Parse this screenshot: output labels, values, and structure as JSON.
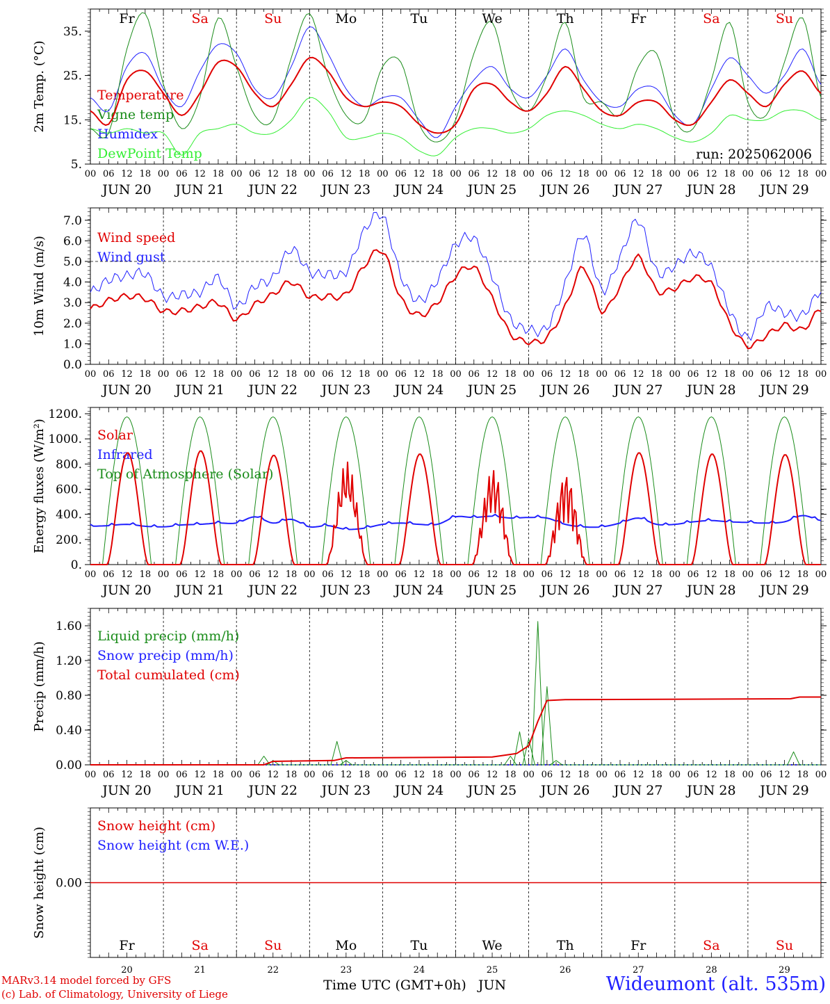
{
  "run_label": "run: 2025062006",
  "weekdays": [
    "Fr",
    "Sa",
    "Su",
    "Mo",
    "Tu",
    "We",
    "Th",
    "Fr",
    "Sa",
    "Su"
  ],
  "weekday_colors": [
    "#000000",
    "#e00000",
    "#e00000",
    "#000000",
    "#000000",
    "#000000",
    "#000000",
    "#000000",
    "#e00000",
    "#e00000"
  ],
  "dates": [
    "JUN 20",
    "JUN 21",
    "JUN 22",
    "JUN 23",
    "JUN 24",
    "JUN 25",
    "JUN 26",
    "JUN 27",
    "JUN 28",
    "JUN 29"
  ],
  "day_numbers": [
    "20",
    "21",
    "22",
    "23",
    "24",
    "25",
    "26",
    "27",
    "28",
    "29"
  ],
  "hour_ticks": [
    "00",
    "06",
    "12",
    "18"
  ],
  "footer": {
    "model": "MARv3.14 model forced by GFS",
    "credit": "(c) Lab. of Climatology, University of Liege",
    "xlabel": "Time UTC (GMT+0h)",
    "month": "JUN",
    "station": "Wideumont (alt. 535m)"
  },
  "chart_data": [
    {
      "type": "line",
      "ylabel": "2m Temp. (°C)",
      "ylim": [
        5,
        40
      ],
      "yticks": [
        "35.",
        "25.",
        "15.",
        "5."
      ],
      "ytick_values": [
        35,
        25,
        15,
        5
      ],
      "legend": [
        {
          "name": "Temperature",
          "color": "#e00000"
        },
        {
          "name": "Vigne temp",
          "color": "#1a8c1a"
        },
        {
          "name": "Humidex",
          "color": "#2020ff"
        },
        {
          "name": "DewPoint Temp",
          "color": "#33ee33"
        }
      ],
      "x_hours": [
        0,
        6,
        12,
        18,
        24,
        30,
        36,
        42,
        48,
        54,
        60,
        66,
        72,
        78,
        84,
        90,
        96,
        102,
        108,
        114,
        120,
        126,
        132,
        138,
        144,
        150,
        156,
        162,
        168,
        174,
        180,
        186,
        192,
        198,
        204,
        210,
        216,
        222,
        228,
        234,
        240
      ],
      "series": [
        {
          "name": "Temperature",
          "color": "#e00000",
          "width": 2,
          "values": [
            17,
            14,
            24,
            26,
            21,
            16,
            21,
            28,
            27,
            21,
            18,
            23,
            29,
            26,
            20,
            18,
            19,
            18,
            14,
            12,
            14,
            22,
            23,
            19,
            17,
            21,
            27,
            22,
            17,
            16,
            19,
            19,
            15,
            14,
            19,
            24,
            21,
            18,
            23,
            26,
            21
          ]
        },
        {
          "name": "Vigne temp",
          "color": "#1a8c1a",
          "width": 1,
          "values": [
            13,
            12,
            31,
            39,
            23,
            13,
            20,
            38,
            27,
            16,
            15,
            29,
            39,
            25,
            16,
            15,
            27,
            28,
            14,
            10,
            15,
            30,
            37,
            22,
            17,
            25,
            37,
            20,
            19,
            16,
            27,
            30,
            15,
            13,
            24,
            37,
            19,
            16,
            28,
            38,
            20
          ]
        },
        {
          "name": "Humidex",
          "color": "#2020ff",
          "width": 1,
          "values": [
            20,
            17,
            27,
            30,
            22,
            18,
            26,
            32,
            30,
            22,
            20,
            27,
            36,
            30,
            22,
            18,
            20,
            20,
            15,
            11,
            18,
            24,
            27,
            22,
            20,
            25,
            31,
            24,
            19,
            18,
            22,
            22,
            16,
            14,
            22,
            29,
            25,
            21,
            25,
            31,
            23
          ]
        },
        {
          "name": "DewPoint Temp",
          "color": "#33ee33",
          "width": 1,
          "values": [
            13,
            12,
            13,
            12,
            12,
            7,
            12,
            13,
            14,
            12,
            12,
            15,
            20,
            17,
            11,
            11,
            12,
            11,
            8,
            7,
            11,
            13,
            13,
            12,
            13,
            16,
            17,
            16,
            14,
            13,
            14,
            13,
            11,
            10,
            12,
            16,
            15,
            15,
            17,
            17,
            15
          ]
        }
      ]
    },
    {
      "type": "line",
      "ylabel": "10m Wind (m/s)",
      "ylim": [
        0,
        7.6
      ],
      "yticks": [
        "7.0",
        "6.0",
        "5.0",
        "4.0",
        "3.0",
        "2.0",
        "1.0",
        "0.0"
      ],
      "ytick_values": [
        7,
        6,
        5,
        4,
        3,
        2,
        1,
        0
      ],
      "dashed_reference": 5.0,
      "legend": [
        {
          "name": "Wind speed",
          "color": "#e00000"
        },
        {
          "name": "Wind gust",
          "color": "#2020ff"
        }
      ],
      "x_hours": [
        0,
        6,
        12,
        18,
        24,
        30,
        36,
        42,
        48,
        54,
        60,
        66,
        72,
        78,
        84,
        90,
        96,
        102,
        108,
        114,
        120,
        126,
        132,
        138,
        144,
        150,
        156,
        162,
        168,
        174,
        180,
        186,
        192,
        198,
        204,
        210,
        216,
        222,
        228,
        234,
        240
      ],
      "series": [
        {
          "name": "Wind speed",
          "color": "#e00000",
          "width": 2,
          "values": [
            2.7,
            3.1,
            3.3,
            3.2,
            2.6,
            2.6,
            2.8,
            3.0,
            2.2,
            2.9,
            3.4,
            4.0,
            3.3,
            3.3,
            3.4,
            4.8,
            5.5,
            3.2,
            2.4,
            3.0,
            4.3,
            4.7,
            3.2,
            1.5,
            1.1,
            1.3,
            2.8,
            4.7,
            2.6,
            3.8,
            5.2,
            3.6,
            3.7,
            4.2,
            3.9,
            2.0,
            0.9,
            1.4,
            1.9,
            1.7,
            2.7
          ]
        },
        {
          "name": "Wind gust",
          "color": "#2020ff",
          "width": 1,
          "values": [
            3.5,
            4.1,
            4.3,
            4.4,
            3.3,
            3.4,
            3.5,
            4.2,
            2.8,
            3.8,
            4.2,
            5.6,
            4.5,
            4.4,
            4.5,
            6.5,
            7.2,
            4.3,
            3.1,
            4.1,
            5.8,
            6.1,
            4.3,
            2.2,
            1.7,
            1.8,
            3.9,
            6.3,
            3.6,
            5.2,
            7.0,
            4.5,
            4.8,
            5.4,
            4.7,
            2.6,
            1.3,
            2.8,
            2.5,
            2.4,
            3.6
          ]
        }
      ]
    },
    {
      "type": "line",
      "ylabel": "Energy fluxes (W/m²)",
      "ylim": [
        0,
        1250
      ],
      "yticks": [
        "1200.",
        "1000.",
        "800.",
        "600.",
        "400.",
        "200.",
        "0."
      ],
      "ytick_values": [
        1200,
        1000,
        800,
        600,
        400,
        200,
        0
      ],
      "legend": [
        {
          "name": "Solar",
          "color": "#e00000"
        },
        {
          "name": "Infrared",
          "color": "#2020ff"
        },
        {
          "name": "Top of Atmosphere (Solar)",
          "color": "#1a8c1a"
        }
      ],
      "daily_peaks": {
        "top_of_atmosphere": 1175,
        "solar": [
          890,
          905,
          870,
          860,
          880,
          800,
          760,
          890,
          880,
          875
        ]
      },
      "infrared_values": [
        305,
        310,
        320,
        305,
        300,
        315,
        320,
        330,
        330,
        380,
        330,
        360,
        300,
        310,
        280,
        290,
        320,
        330,
        320,
        320,
        380,
        375,
        385,
        370,
        375,
        370,
        320,
        300,
        300,
        330,
        370,
        320,
        320,
        340,
        350,
        340,
        335,
        330,
        340,
        390,
        350
      ]
    },
    {
      "type": "line",
      "ylabel": "Precip (mm/h)",
      "ylim": [
        0,
        1.8
      ],
      "yticks": [
        "1.60",
        "1.20",
        "0.80",
        "0.40",
        "0.00"
      ],
      "ytick_values": [
        1.6,
        1.2,
        0.8,
        0.4,
        0
      ],
      "legend": [
        {
          "name": "Liquid precip (mm/h)",
          "color": "#1a8c1a"
        },
        {
          "name": "Snow precip (mm/h)",
          "color": "#2020ff"
        },
        {
          "name": "Total cumulated (cm)",
          "color": "#e00000"
        }
      ],
      "liquid_events": [
        {
          "hour": 57,
          "value": 0.1
        },
        {
          "hour": 60,
          "value": 0.05
        },
        {
          "hour": 81,
          "value": 0.27
        },
        {
          "hour": 84,
          "value": 0.05
        },
        {
          "hour": 138,
          "value": 0.1
        },
        {
          "hour": 141,
          "value": 0.38
        },
        {
          "hour": 144,
          "value": 0.3
        },
        {
          "hour": 147,
          "value": 1.65
        },
        {
          "hour": 150,
          "value": 0.9
        },
        {
          "hour": 153,
          "value": 0.05
        },
        {
          "hour": 231,
          "value": 0.15
        }
      ],
      "cumulated": [
        {
          "hour": 0,
          "value": 0
        },
        {
          "hour": 57,
          "value": 0
        },
        {
          "hour": 60,
          "value": 0.04
        },
        {
          "hour": 80,
          "value": 0.05
        },
        {
          "hour": 84,
          "value": 0.08
        },
        {
          "hour": 132,
          "value": 0.09
        },
        {
          "hour": 140,
          "value": 0.13
        },
        {
          "hour": 144,
          "value": 0.22
        },
        {
          "hour": 147,
          "value": 0.5
        },
        {
          "hour": 150,
          "value": 0.74
        },
        {
          "hour": 156,
          "value": 0.75
        },
        {
          "hour": 230,
          "value": 0.76
        },
        {
          "hour": 233,
          "value": 0.78
        },
        {
          "hour": 240,
          "value": 0.78
        }
      ]
    },
    {
      "type": "line",
      "ylabel": "Snow height (cm)",
      "ylim": [
        -1,
        1
      ],
      "yticks": [
        "0.00"
      ],
      "ytick_values": [
        0
      ],
      "legend": [
        {
          "name": "Snow height (cm)",
          "color": "#e00000"
        },
        {
          "name": "Snow height (cm W.E.)",
          "color": "#2020ff"
        }
      ],
      "values": [
        0,
        0
      ]
    }
  ]
}
